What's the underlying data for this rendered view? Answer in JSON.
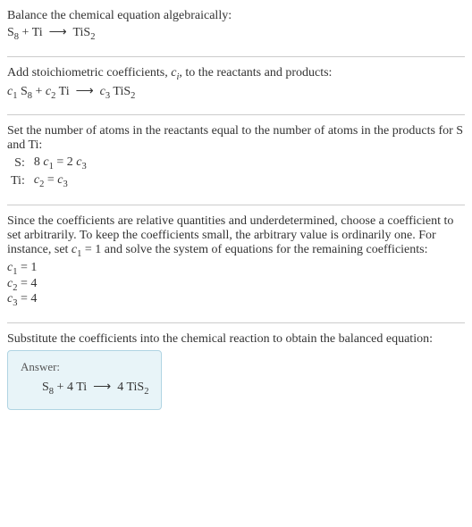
{
  "section1": {
    "text": "Balance the chemical equation algebraically:"
  },
  "section2": {
    "text1": "Add stoichiometric coefficients, ",
    "ci": "c",
    "ci_sub": "i",
    "text2": ", to the reactants and products:"
  },
  "section3": {
    "text": "Set the number of atoms in the reactants equal to the number of atoms in the products for S and Ti:",
    "rows": [
      {
        "elem": "S:",
        "lhs_coef": "8",
        "lhs_var": "c",
        "lhs_sub": "1",
        "eq": " = 2",
        "rhs_var": "c",
        "rhs_sub": "3"
      },
      {
        "elem": "Ti:",
        "lhs_coef": "",
        "lhs_var": "c",
        "lhs_sub": "2",
        "eq": " = ",
        "rhs_var": "c",
        "rhs_sub": "3"
      }
    ]
  },
  "section4": {
    "text1": "Since the coefficients are relative quantities and underdetermined, choose a coefficient to set arbitrarily. To keep the coefficients small, the arbitrary value is ordinarily one. For instance, set ",
    "var": "c",
    "sub": "1",
    "text2": " = 1 and solve the system of equations for the remaining coefficients:",
    "coefs": [
      {
        "var": "c",
        "sub": "1",
        "val": " = 1"
      },
      {
        "var": "c",
        "sub": "2",
        "val": " = 4"
      },
      {
        "var": "c",
        "sub": "3",
        "val": " = 4"
      }
    ]
  },
  "section5": {
    "text": "Substitute the coefficients into the chemical reaction to obtain the balanced equation:"
  },
  "answer": {
    "label": "Answer:"
  }
}
